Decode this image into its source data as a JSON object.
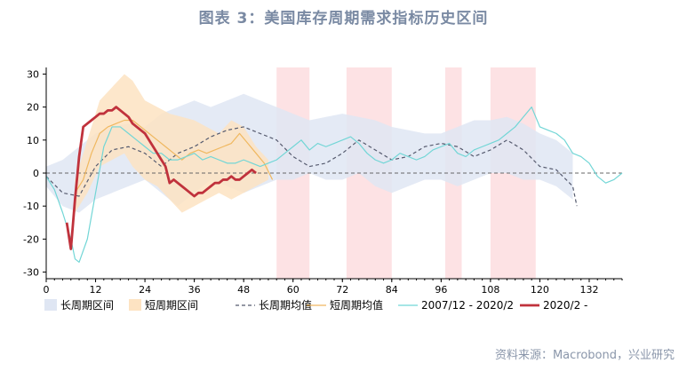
{
  "title": "图表 3：美国库存周期需求指标历史区间",
  "source": "资料来源：Macrobond，兴业研究",
  "chart_data": {
    "type": "line",
    "ylim": [
      -32,
      32
    ],
    "yticks": [
      30,
      20,
      10,
      0,
      -10,
      -20,
      -30
    ],
    "xlim": [
      0,
      140
    ],
    "xticks": [
      0,
      12,
      24,
      36,
      48,
      60,
      72,
      84,
      96,
      108,
      120,
      132
    ],
    "recessions": [
      [
        56,
        64
      ],
      [
        73,
        84
      ],
      [
        97,
        101
      ],
      [
        108,
        119
      ]
    ],
    "legend": [
      {
        "label": "长周期区间",
        "kind": "band",
        "color": "#dfe6f3"
      },
      {
        "label": "短周期区间",
        "kind": "band",
        "color": "#fde3c2"
      },
      {
        "label": "长周期均值",
        "kind": "dash",
        "color": "#555a6e"
      },
      {
        "label": "短周期均值",
        "kind": "line",
        "color": "#f0b860"
      },
      {
        "label": "2007/12 - 2020/2",
        "kind": "line",
        "color": "#72d6d6"
      },
      {
        "label": "2020/2 -",
        "kind": "line",
        "color": "#c0323c"
      }
    ],
    "series": [
      {
        "name": "长周期区间",
        "type": "band",
        "color": "#dfe6f3",
        "x": [
          0,
          4,
          8,
          12,
          16,
          20,
          24,
          28,
          32,
          36,
          40,
          44,
          48,
          52,
          56,
          60,
          64,
          68,
          72,
          76,
          80,
          84,
          88,
          92,
          96,
          100,
          104,
          108,
          112,
          116,
          120,
          124,
          128
        ],
        "upper": [
          2,
          4,
          8,
          12,
          14,
          15,
          14,
          18,
          20,
          22,
          20,
          22,
          24,
          22,
          20,
          18,
          16,
          17,
          18,
          17,
          16,
          14,
          13,
          12,
          12,
          14,
          16,
          16,
          17,
          15,
          12,
          10,
          6
        ],
        "lower": [
          -4,
          -10,
          -12,
          -8,
          -6,
          -4,
          -2,
          -6,
          -10,
          -6,
          -2,
          -4,
          -6,
          -4,
          -2,
          -2,
          0,
          -2,
          -2,
          0,
          -4,
          -6,
          -4,
          -2,
          -2,
          -4,
          -2,
          0,
          0,
          -2,
          -2,
          -4,
          -8
        ]
      },
      {
        "name": "短周期区间",
        "type": "band",
        "color": "#fde3c2",
        "x": [
          7,
          10,
          13,
          16,
          19,
          21,
          24,
          27,
          30,
          33,
          36,
          39,
          42,
          45,
          48,
          51,
          54
        ],
        "upper": [
          -2,
          10,
          22,
          26,
          30,
          28,
          22,
          20,
          18,
          17,
          16,
          14,
          12,
          16,
          14,
          8,
          4
        ],
        "lower": [
          -12,
          -6,
          2,
          4,
          6,
          2,
          -2,
          -4,
          -8,
          -12,
          -10,
          -8,
          -6,
          -8,
          -6,
          -4,
          -2
        ]
      },
      {
        "name": "长周期均值",
        "type": "line",
        "dash": true,
        "color": "#555a6e",
        "x": [
          0,
          4,
          8,
          12,
          16,
          20,
          24,
          28,
          32,
          36,
          40,
          44,
          48,
          52,
          56,
          60,
          64,
          68,
          72,
          76,
          80,
          84,
          88,
          92,
          96,
          100,
          104,
          108,
          112,
          116,
          120,
          124,
          128,
          129
        ],
        "y": [
          -1,
          -6,
          -7,
          2,
          7,
          8,
          6,
          2,
          6,
          8,
          11,
          13,
          14,
          12,
          10,
          5,
          2,
          3,
          6,
          10,
          7,
          4,
          5,
          8,
          9,
          8,
          5,
          7,
          10,
          7,
          2,
          1,
          -4,
          -10
        ]
      },
      {
        "name": "短周期均值",
        "type": "line",
        "color": "#f0b860",
        "x": [
          7,
          9,
          11,
          13,
          15,
          17,
          19,
          21,
          23,
          25,
          27,
          29,
          31,
          33,
          35,
          37,
          39,
          41,
          43,
          45,
          47,
          49,
          51,
          53,
          55
        ],
        "y": [
          -6,
          -2,
          6,
          12,
          14,
          15,
          16,
          16,
          14,
          12,
          10,
          8,
          6,
          4,
          6,
          7,
          6,
          7,
          8,
          9,
          12,
          9,
          6,
          3,
          -2
        ]
      },
      {
        "name": "2007/12 - 2020/2",
        "type": "line",
        "color": "#72d6d6",
        "x": [
          0,
          2,
          4,
          6,
          7,
          8,
          10,
          12,
          14,
          16,
          18,
          20,
          22,
          24,
          26,
          28,
          30,
          32,
          34,
          36,
          38,
          40,
          42,
          44,
          46,
          48,
          50,
          52,
          54,
          56,
          58,
          60,
          62,
          64,
          66,
          68,
          70,
          72,
          74,
          76,
          78,
          80,
          82,
          84,
          86,
          88,
          90,
          92,
          94,
          96,
          98,
          100,
          102,
          104,
          106,
          108,
          110,
          112,
          114,
          116,
          118,
          120,
          122,
          124,
          126,
          128,
          130,
          132,
          134,
          136,
          138,
          140
        ],
        "y": [
          -1,
          -5,
          -12,
          -20,
          -26,
          -27,
          -20,
          -6,
          8,
          14,
          14,
          12,
          10,
          8,
          6,
          6,
          4,
          4,
          5,
          6,
          4,
          5,
          4,
          3,
          3,
          4,
          3,
          2,
          3,
          4,
          6,
          8,
          10,
          7,
          9,
          8,
          9,
          10,
          11,
          9,
          6,
          4,
          3,
          4,
          6,
          5,
          4,
          5,
          7,
          8,
          9,
          6,
          5,
          7,
          8,
          9,
          10,
          12,
          14,
          17,
          20,
          14,
          13,
          12,
          10,
          6,
          5,
          3,
          -1,
          -3,
          -2,
          0
        ]
      },
      {
        "name": "2020/2 -",
        "type": "line",
        "color": "#c0323c",
        "x": [
          5,
          6,
          7,
          8,
          9,
          10,
          11,
          12,
          13,
          14,
          15,
          16,
          17,
          18,
          19,
          20,
          21,
          22,
          23,
          24,
          25,
          26,
          27,
          28,
          29,
          30,
          31,
          32,
          33,
          34,
          35,
          36,
          37,
          38,
          39,
          40,
          41,
          42,
          43,
          44,
          45,
          46,
          47,
          48,
          49,
          50,
          51
        ],
        "y": [
          -15,
          -23,
          -8,
          5,
          14,
          15,
          16,
          17,
          18,
          18,
          19,
          19,
          20,
          19,
          18,
          17,
          15,
          14,
          13,
          12,
          10,
          8,
          6,
          4,
          2,
          -3,
          -2,
          -3,
          -4,
          -5,
          -6,
          -7,
          -6,
          -6,
          -5,
          -4,
          -3,
          -3,
          -2,
          -2,
          -1,
          -2,
          -2,
          -1,
          0,
          1,
          0
        ]
      }
    ]
  }
}
